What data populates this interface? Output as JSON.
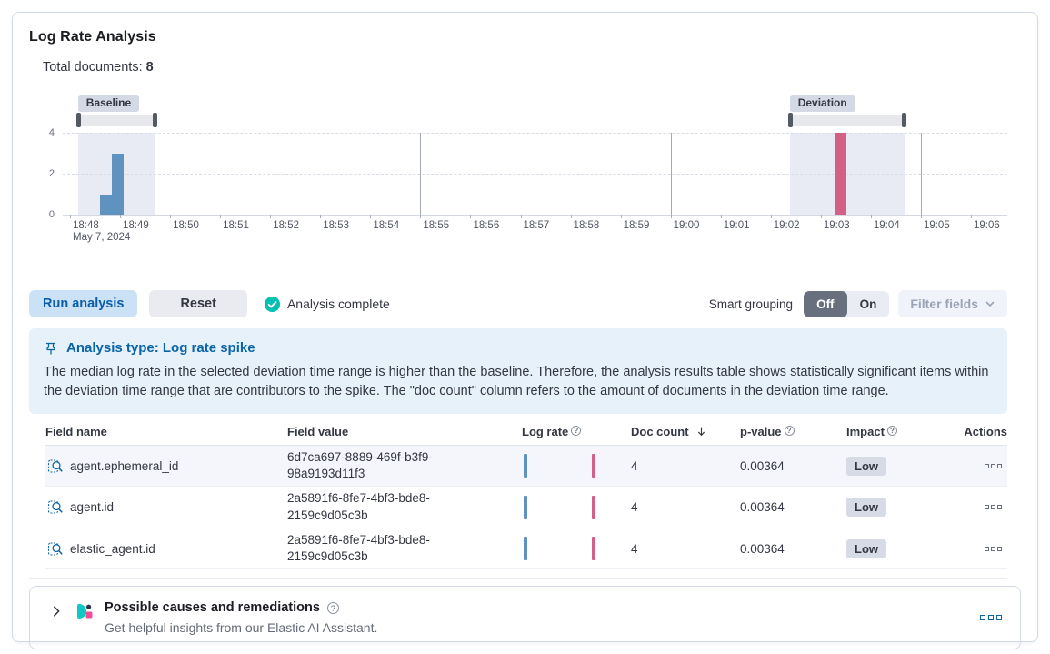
{
  "panel": {
    "title": "Log Rate Analysis"
  },
  "summary": {
    "label": "Total documents:",
    "value": "8"
  },
  "chart_data": {
    "type": "bar",
    "title": "Log rate histogram with baseline and deviation brushes",
    "x_date_label": "May 7, 2024",
    "x_ticks": [
      "18:48",
      "18:49",
      "18:50",
      "18:51",
      "18:52",
      "18:53",
      "18:54",
      "18:55",
      "18:56",
      "18:57",
      "18:58",
      "18:59",
      "19:00",
      "19:01",
      "19:02",
      "19:03",
      "19:04",
      "19:05",
      "19:06"
    ],
    "y_ticks": [
      0,
      2,
      4
    ],
    "ylim": [
      0,
      4
    ],
    "grid": true,
    "bars": [
      {
        "time": "18:48:45",
        "x_minute": 0.71,
        "value": 1,
        "series": "baseline",
        "color": "#6092C0"
      },
      {
        "time": "18:49:00",
        "x_minute": 0.95,
        "value": 3,
        "series": "baseline",
        "color": "#6092C0"
      },
      {
        "time": "19:03:20",
        "x_minute": 15.4,
        "value": 4,
        "series": "deviation",
        "color": "#D36086"
      }
    ],
    "brushes": [
      {
        "label": "Baseline",
        "start_minute": 0.16,
        "end_minute": 1.71
      },
      {
        "label": "Deviation",
        "start_minute": 14.38,
        "end_minute": 16.67
      }
    ],
    "major_vline_minutes": [
      7,
      12,
      17
    ]
  },
  "toolbar": {
    "run_label": "Run analysis",
    "reset_label": "Reset",
    "status_label": "Analysis complete",
    "smart_grouping_label": "Smart grouping",
    "off_label": "Off",
    "on_label": "On",
    "filter_fields_label": "Filter fields"
  },
  "callout": {
    "title": "Analysis type: Log rate spike",
    "body": "The median log rate in the selected deviation time range is higher than the baseline. Therefore, the analysis results table shows statistically significant items within the deviation time range that are contributors to the spike. The \"doc count\" column refers to the amount of documents in the deviation time range."
  },
  "table": {
    "headers": {
      "field_name": "Field name",
      "field_value": "Field value",
      "log_rate": "Log rate",
      "doc_count": "Doc count",
      "p_value": "p-value",
      "impact": "Impact",
      "actions": "Actions"
    },
    "sort": {
      "column": "doc_count",
      "direction": "desc"
    },
    "rows": [
      {
        "field_name": "agent.ephemeral_id",
        "field_value": "6d7ca697-8889-469f-b3f9-98a9193d11f3",
        "doc_count": "4",
        "p_value": "0.00364",
        "impact": "Low"
      },
      {
        "field_name": "agent.id",
        "field_value": "2a5891f6-8fe7-4bf3-bde8-2159c9d05c3b",
        "doc_count": "4",
        "p_value": "0.00364",
        "impact": "Low"
      },
      {
        "field_name": "elastic_agent.id",
        "field_value": "2a5891f6-8fe7-4bf3-bde8-2159c9d05c3b",
        "doc_count": "4",
        "p_value": "0.00364",
        "impact": "Low"
      }
    ]
  },
  "ai_panel": {
    "title": "Possible causes and remediations",
    "subtitle": "Get helpful insights from our Elastic AI Assistant."
  },
  "colors": {
    "bar_baseline_blue": "#6092C0",
    "bar_deviation_pink": "#D36086",
    "brush_fill": "#E8EBF3",
    "badge_bg": "#D3DAE6",
    "primary_blue": "#0B64A8",
    "run_button_bg": "#CBE1F6",
    "callout_bg": "#E6F1FA",
    "toggle_selected": "#69707D",
    "check_green": "#00BFB3",
    "ai_logo_teal": "#10C9C3",
    "ai_logo_pink": "#F04E98",
    "ai_logo_dark": "#29364A"
  }
}
